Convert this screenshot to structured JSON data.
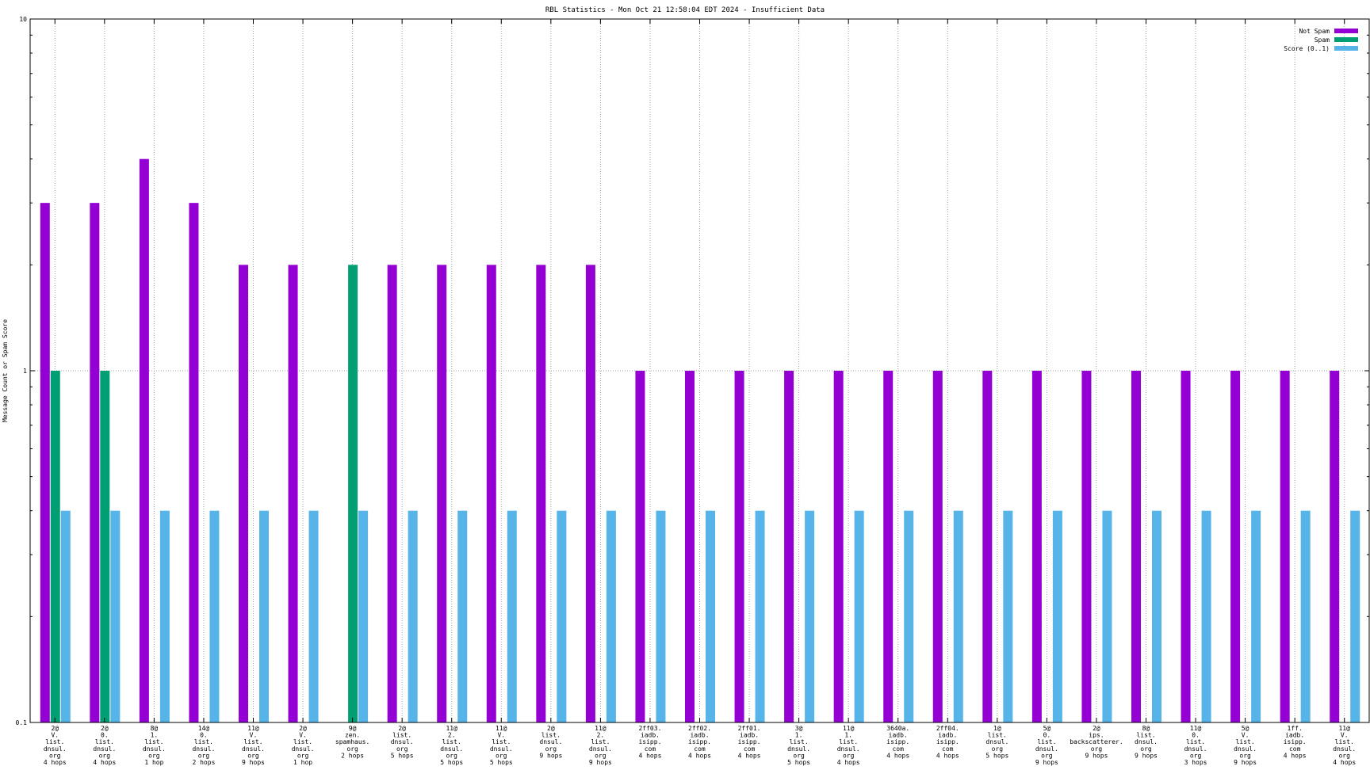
{
  "chart_data": {
    "type": "bar",
    "title": "RBL Statistics - Mon Oct 21 12:58:04 EDT 2024 - Insufficient Data",
    "xlabel": "",
    "ylabel": "Message Count or Spam Score",
    "yscale": "log",
    "ylim": [
      0.1,
      10
    ],
    "yticks": [
      "0.1",
      "1",
      "10"
    ],
    "grid": true,
    "legend_position": "top-right",
    "categories": [
      [
        "2@",
        "V.",
        "list.",
        "dnsul.",
        "org",
        "4 hops"
      ],
      [
        "2@",
        "0.",
        "list.",
        "dnsul.",
        "org",
        "4 hops"
      ],
      [
        "8@",
        "1.",
        "list.",
        "dnsul.",
        "org",
        "1 hop"
      ],
      [
        "14@",
        "0.",
        "list.",
        "dnsul.",
        "org",
        "2 hops"
      ],
      [
        "11@",
        "V.",
        "list.",
        "dnsul.",
        "org",
        "9 hops"
      ],
      [
        "2@",
        "V.",
        "list.",
        "dnsul.",
        "org",
        "1 hop"
      ],
      [
        "9@",
        "zen.",
        "spamhaus.",
        "org",
        "2 hops"
      ],
      [
        "2@",
        "list.",
        "dnsul.",
        "org",
        "5 hops"
      ],
      [
        "11@",
        "2.",
        "list.",
        "dnsul.",
        "org",
        "5 hops"
      ],
      [
        "11@",
        "V.",
        "list.",
        "dnsul.",
        "org",
        "5 hops"
      ],
      [
        "2@",
        "list.",
        "dnsul.",
        "org",
        "9 hops"
      ],
      [
        "11@",
        "2.",
        "list.",
        "dnsul.",
        "org",
        "9 hops"
      ],
      [
        "2ff03.",
        "iadb.",
        "isipp.",
        "com",
        "4 hops"
      ],
      [
        "2ff02.",
        "iadb.",
        "isipp.",
        "com",
        "4 hops"
      ],
      [
        "2ff01.",
        "iadb.",
        "isipp.",
        "com",
        "4 hops"
      ],
      [
        "3@",
        "1.",
        "list.",
        "dnsul.",
        "org",
        "5 hops"
      ],
      [
        "11@",
        "1.",
        "list.",
        "dnsul.",
        "org",
        "4 hops"
      ],
      [
        "3640a.",
        "iadb.",
        "isipp.",
        "com",
        "4 hops"
      ],
      [
        "2ff04.",
        "iadb.",
        "isipp.",
        "com",
        "4 hops"
      ],
      [
        "1@",
        "list.",
        "dnsul.",
        "org",
        "5 hops"
      ],
      [
        "5@",
        "0.",
        "list.",
        "dnsul.",
        "org",
        "9 hops"
      ],
      [
        "2@",
        "ips.",
        "backscatterer.",
        "org",
        "9 hops"
      ],
      [
        "8@",
        "list.",
        "dnsul.",
        "org",
        "9 hops"
      ],
      [
        "11@",
        "0.",
        "list.",
        "dnsul.",
        "org",
        "3 hops"
      ],
      [
        "5@",
        "V.",
        "list.",
        "dnsul.",
        "org",
        "9 hops"
      ],
      [
        "1ff.",
        "iadb.",
        "isipp.",
        "com",
        "4 hops"
      ],
      [
        "11@",
        "V.",
        "list.",
        "dnsul.",
        "org",
        "4 hops"
      ]
    ],
    "series": [
      {
        "name": "Not Spam",
        "color": "#9400d3",
        "values": [
          3,
          3,
          4,
          3,
          2,
          2,
          null,
          2,
          2,
          2,
          2,
          2,
          1,
          1,
          1,
          1,
          1,
          1,
          1,
          1,
          1,
          1,
          1,
          1,
          1,
          1,
          1
        ]
      },
      {
        "name": "Spam",
        "color": "#009e73",
        "values": [
          1,
          1,
          null,
          null,
          null,
          null,
          2,
          null,
          null,
          null,
          null,
          null,
          null,
          null,
          null,
          null,
          null,
          null,
          null,
          null,
          null,
          null,
          null,
          null,
          null,
          null,
          null
        ]
      },
      {
        "name": "Score (0..1)",
        "color": "#56b4e9",
        "values": [
          0.4,
          0.4,
          0.4,
          0.4,
          0.4,
          0.4,
          0.4,
          0.4,
          0.4,
          0.4,
          0.4,
          0.4,
          0.4,
          0.4,
          0.4,
          0.4,
          0.4,
          0.4,
          0.4,
          0.4,
          0.4,
          0.4,
          0.4,
          0.4,
          0.4,
          0.4,
          0.4
        ]
      }
    ]
  }
}
